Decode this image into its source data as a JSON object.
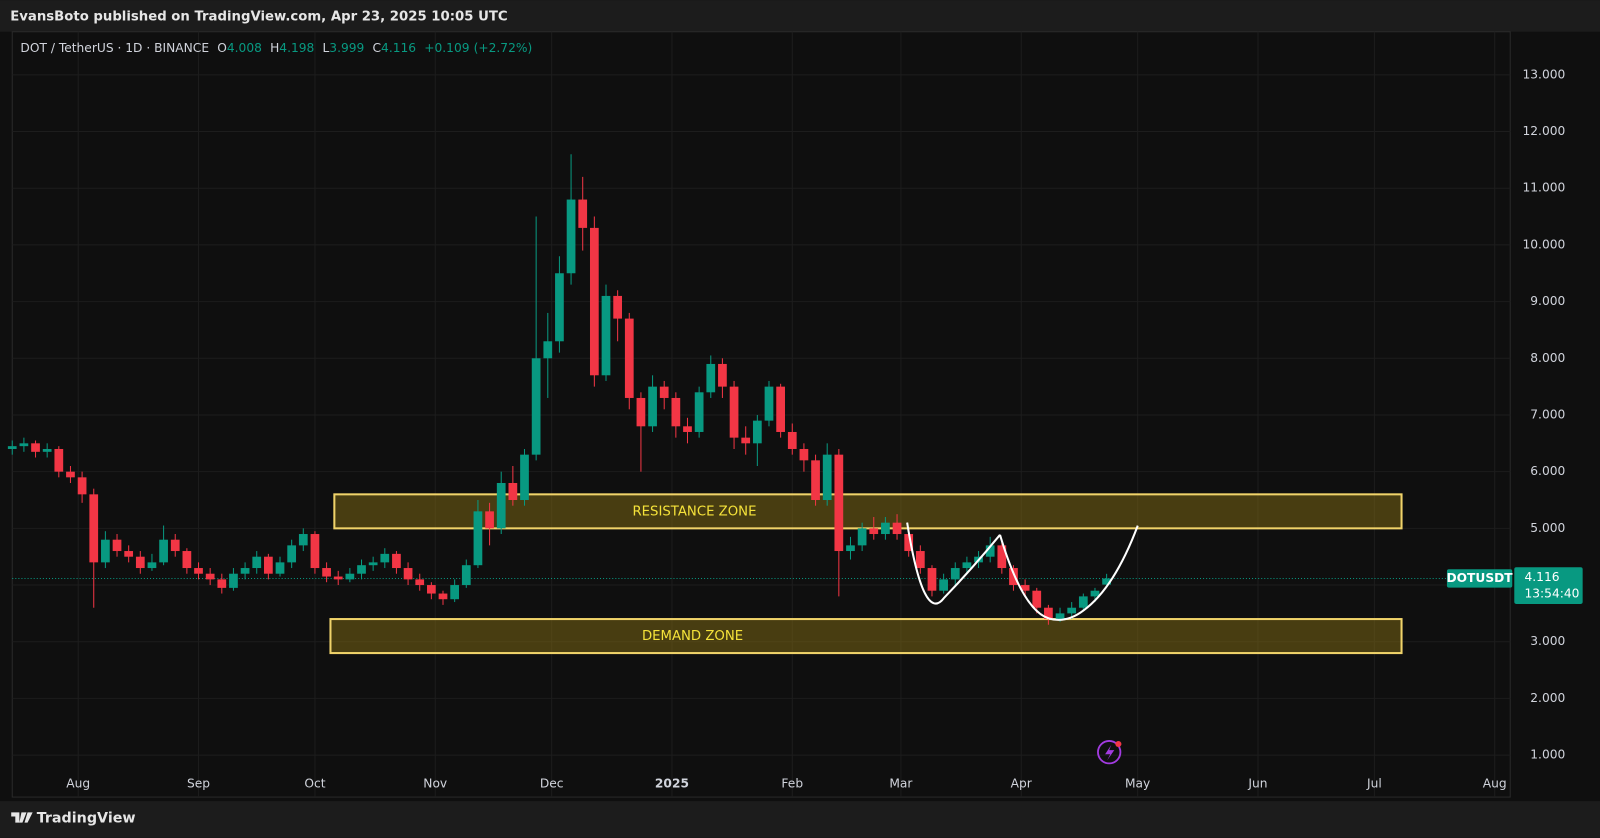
{
  "chart_data": {
    "type": "candlestick",
    "published": "EvansBoto published on TradingView.com, Apr 23, 2025 10:05 UTC",
    "symbol": "DOT / TetherUS · 1D · BINANCE",
    "legend_fields": [
      {
        "label": "O",
        "value": 4.008
      },
      {
        "label": "H",
        "value": 4.198
      },
      {
        "label": "L",
        "value": 3.999
      },
      {
        "label": "C",
        "value": 4.116
      }
    ],
    "change": "+0.109",
    "change_pct": "(+2.72%)",
    "ticker": "DOTUSDT",
    "last_price": 4.116,
    "countdown": "13:54:40",
    "brand": "TradingView",
    "up_color": "#089981",
    "down_color": "#f23645",
    "xlim": [
      -17,
      369
    ],
    "ylim": [
      0.26,
      13.76
    ],
    "xticks": [
      {
        "value": 0,
        "label": "Aug"
      },
      {
        "value": 31,
        "label": "Sep"
      },
      {
        "value": 61,
        "label": "Oct"
      },
      {
        "value": 92,
        "label": "Nov"
      },
      {
        "value": 122,
        "label": "Dec"
      },
      {
        "value": 153,
        "label": "2025"
      },
      {
        "value": 184,
        "label": "Feb"
      },
      {
        "value": 212,
        "label": "Mar"
      },
      {
        "value": 243,
        "label": "Apr"
      },
      {
        "value": 273,
        "label": "May"
      },
      {
        "value": 304,
        "label": "Jun"
      },
      {
        "value": 334,
        "label": "Jul"
      },
      {
        "value": 365,
        "label": "Aug"
      }
    ],
    "yticks": [
      {
        "value": 1,
        "label": "1.000"
      },
      {
        "value": 2,
        "label": "2.000"
      },
      {
        "value": 3,
        "label": "3.000"
      },
      {
        "value": 4,
        "label": "4.000"
      },
      {
        "value": 5,
        "label": "5.000"
      },
      {
        "value": 6,
        "label": "6.000"
      },
      {
        "value": 7,
        "label": "7.000"
      },
      {
        "value": 8,
        "label": "8.000"
      },
      {
        "value": 9,
        "label": "9.000"
      },
      {
        "value": 10,
        "label": "10.000"
      },
      {
        "value": 11,
        "label": "11.000"
      },
      {
        "value": 12,
        "label": "12.000"
      },
      {
        "value": 13,
        "label": "13.000"
      }
    ],
    "zones": [
      {
        "label": "RESISTANCE ZONE",
        "from": 66,
        "to": 341,
        "low": 5.0,
        "high": 5.6
      },
      {
        "label": "DEMAND ZONE",
        "from": 65,
        "to": 341,
        "low": 2.8,
        "high": 3.4
      }
    ],
    "x": [
      -17,
      -14,
      -11,
      -8,
      -5,
      -2,
      1,
      4,
      7,
      10,
      13,
      16,
      19,
      22,
      25,
      28,
      31,
      34,
      37,
      40,
      43,
      46,
      49,
      52,
      55,
      58,
      61,
      64,
      67,
      70,
      73,
      76,
      79,
      82,
      85,
      88,
      91,
      94,
      97,
      100,
      103,
      106,
      109,
      112,
      115,
      118,
      121,
      124,
      127,
      130,
      133,
      136,
      139,
      142,
      145,
      148,
      151,
      154,
      157,
      160,
      163,
      166,
      169,
      172,
      175,
      178,
      181,
      184,
      187,
      190,
      193,
      196,
      199,
      202,
      205,
      208,
      211,
      214,
      217,
      220,
      223,
      226,
      229,
      232,
      235,
      238,
      241,
      244,
      247,
      250,
      253,
      256,
      259,
      262,
      265
    ],
    "ohlc": [
      [
        6.4,
        6.55,
        6.3,
        6.45
      ],
      [
        6.45,
        6.6,
        6.35,
        6.5
      ],
      [
        6.5,
        6.55,
        6.25,
        6.35
      ],
      [
        6.35,
        6.5,
        6.25,
        6.4
      ],
      [
        6.4,
        6.45,
        5.9,
        6.0
      ],
      [
        6.0,
        6.1,
        5.8,
        5.9
      ],
      [
        5.9,
        6.0,
        5.45,
        5.6
      ],
      [
        5.6,
        5.7,
        3.6,
        4.4
      ],
      [
        4.4,
        4.95,
        4.3,
        4.8
      ],
      [
        4.8,
        4.9,
        4.5,
        4.6
      ],
      [
        4.6,
        4.7,
        4.4,
        4.5
      ],
      [
        4.5,
        4.6,
        4.2,
        4.3
      ],
      [
        4.3,
        4.55,
        4.25,
        4.4
      ],
      [
        4.4,
        5.05,
        4.35,
        4.8
      ],
      [
        4.8,
        4.9,
        4.5,
        4.6
      ],
      [
        4.6,
        4.65,
        4.2,
        4.3
      ],
      [
        4.3,
        4.4,
        4.1,
        4.2
      ],
      [
        4.2,
        4.3,
        4.0,
        4.1
      ],
      [
        4.1,
        4.2,
        3.85,
        3.95
      ],
      [
        3.95,
        4.3,
        3.9,
        4.2
      ],
      [
        4.2,
        4.4,
        4.1,
        4.3
      ],
      [
        4.3,
        4.6,
        4.2,
        4.5
      ],
      [
        4.5,
        4.55,
        4.1,
        4.2
      ],
      [
        4.2,
        4.5,
        4.15,
        4.4
      ],
      [
        4.4,
        4.8,
        4.3,
        4.7
      ],
      [
        4.7,
        5.0,
        4.6,
        4.9
      ],
      [
        4.9,
        4.95,
        4.2,
        4.3
      ],
      [
        4.3,
        4.4,
        4.05,
        4.15
      ],
      [
        4.15,
        4.25,
        4.0,
        4.1
      ],
      [
        4.1,
        4.3,
        4.05,
        4.2
      ],
      [
        4.2,
        4.45,
        4.1,
        4.35
      ],
      [
        4.35,
        4.5,
        4.25,
        4.4
      ],
      [
        4.4,
        4.65,
        4.3,
        4.55
      ],
      [
        4.55,
        4.6,
        4.2,
        4.3
      ],
      [
        4.3,
        4.4,
        4.0,
        4.1
      ],
      [
        4.1,
        4.2,
        3.9,
        4.0
      ],
      [
        4.0,
        4.05,
        3.75,
        3.85
      ],
      [
        3.85,
        3.9,
        3.65,
        3.75
      ],
      [
        3.75,
        4.1,
        3.7,
        4.0
      ],
      [
        4.0,
        4.45,
        3.95,
        4.35
      ],
      [
        4.35,
        5.5,
        4.3,
        5.3
      ],
      [
        5.3,
        5.45,
        4.7,
        5.0
      ],
      [
        5.0,
        6.0,
        4.9,
        5.8
      ],
      [
        5.8,
        6.1,
        5.4,
        5.5
      ],
      [
        5.5,
        6.4,
        5.4,
        6.3
      ],
      [
        6.3,
        10.5,
        6.2,
        8.0
      ],
      [
        8.0,
        8.8,
        7.3,
        8.3
      ],
      [
        8.3,
        9.8,
        8.1,
        9.5
      ],
      [
        9.5,
        11.6,
        9.3,
        10.8
      ],
      [
        10.8,
        11.2,
        9.9,
        10.3
      ],
      [
        10.3,
        10.5,
        7.5,
        7.7
      ],
      [
        7.7,
        9.3,
        7.6,
        9.1
      ],
      [
        9.1,
        9.2,
        8.3,
        8.7
      ],
      [
        8.7,
        8.8,
        7.1,
        7.3
      ],
      [
        7.3,
        7.4,
        6.0,
        6.8
      ],
      [
        6.8,
        7.7,
        6.7,
        7.5
      ],
      [
        7.5,
        7.6,
        7.1,
        7.3
      ],
      [
        7.3,
        7.4,
        6.6,
        6.8
      ],
      [
        6.8,
        6.95,
        6.5,
        6.7
      ],
      [
        6.7,
        7.5,
        6.6,
        7.4
      ],
      [
        7.4,
        8.05,
        7.3,
        7.9
      ],
      [
        7.9,
        8.0,
        7.3,
        7.5
      ],
      [
        7.5,
        7.6,
        6.4,
        6.6
      ],
      [
        6.6,
        6.8,
        6.3,
        6.5
      ],
      [
        6.5,
        7.0,
        6.1,
        6.9
      ],
      [
        6.9,
        7.6,
        6.8,
        7.5
      ],
      [
        7.5,
        7.55,
        6.6,
        6.7
      ],
      [
        6.7,
        6.85,
        6.3,
        6.4
      ],
      [
        6.4,
        6.5,
        6.0,
        6.2
      ],
      [
        6.2,
        6.3,
        5.4,
        5.5
      ],
      [
        5.5,
        6.5,
        5.4,
        6.3
      ],
      [
        6.3,
        6.4,
        3.8,
        4.6
      ],
      [
        4.6,
        4.85,
        4.45,
        4.7
      ],
      [
        4.7,
        5.1,
        4.6,
        5.0
      ],
      [
        5.0,
        5.2,
        4.8,
        4.9
      ],
      [
        4.9,
        5.2,
        4.8,
        5.1
      ],
      [
        5.1,
        5.25,
        4.8,
        4.9
      ],
      [
        4.9,
        5.0,
        4.5,
        4.6
      ],
      [
        4.6,
        4.7,
        4.2,
        4.3
      ],
      [
        4.3,
        4.35,
        3.8,
        3.9
      ],
      [
        3.9,
        4.2,
        3.85,
        4.1
      ],
      [
        4.1,
        4.4,
        4.0,
        4.3
      ],
      [
        4.3,
        4.5,
        4.2,
        4.4
      ],
      [
        4.4,
        4.6,
        4.3,
        4.5
      ],
      [
        4.5,
        4.85,
        4.4,
        4.7
      ],
      [
        4.7,
        4.75,
        4.2,
        4.3
      ],
      [
        4.3,
        4.35,
        3.9,
        4.0
      ],
      [
        4.0,
        4.1,
        3.8,
        3.9
      ],
      [
        3.9,
        3.95,
        3.5,
        3.6
      ],
      [
        3.6,
        3.65,
        3.3,
        3.4
      ],
      [
        3.4,
        3.6,
        3.35,
        3.5
      ],
      [
        3.5,
        3.7,
        3.4,
        3.6
      ],
      [
        3.6,
        3.85,
        3.55,
        3.8
      ],
      [
        3.8,
        3.95,
        3.7,
        3.9
      ],
      [
        4.008,
        4.198,
        3.999,
        4.116
      ]
    ]
  }
}
